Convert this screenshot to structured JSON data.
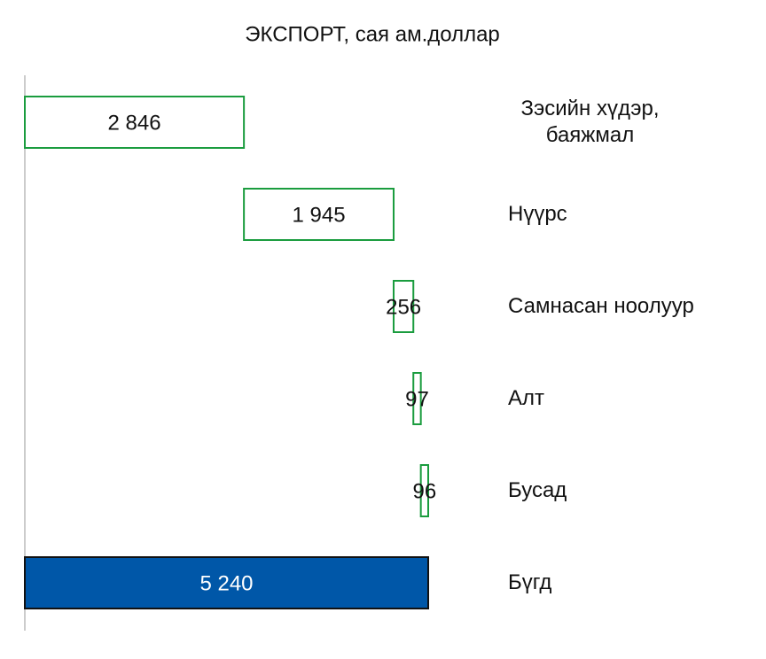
{
  "chart_data": {
    "type": "waterfall",
    "title": "ЭКСПОРТ, сая ам.доллар",
    "categories": [
      "Зэсийн хүдэр, баяжмал",
      "Нүүрс",
      "Самнасан ноолуур",
      "Алт",
      "Бусад",
      "Бүгд"
    ],
    "values": [
      2846,
      1945,
      256,
      97,
      96,
      5240
    ],
    "value_labels": [
      "2 846",
      "1 945",
      "256",
      "97",
      "96",
      "5 240"
    ],
    "last_is_total": true,
    "increase_color": "#1a9c3e",
    "total_color": "#0057a8"
  }
}
